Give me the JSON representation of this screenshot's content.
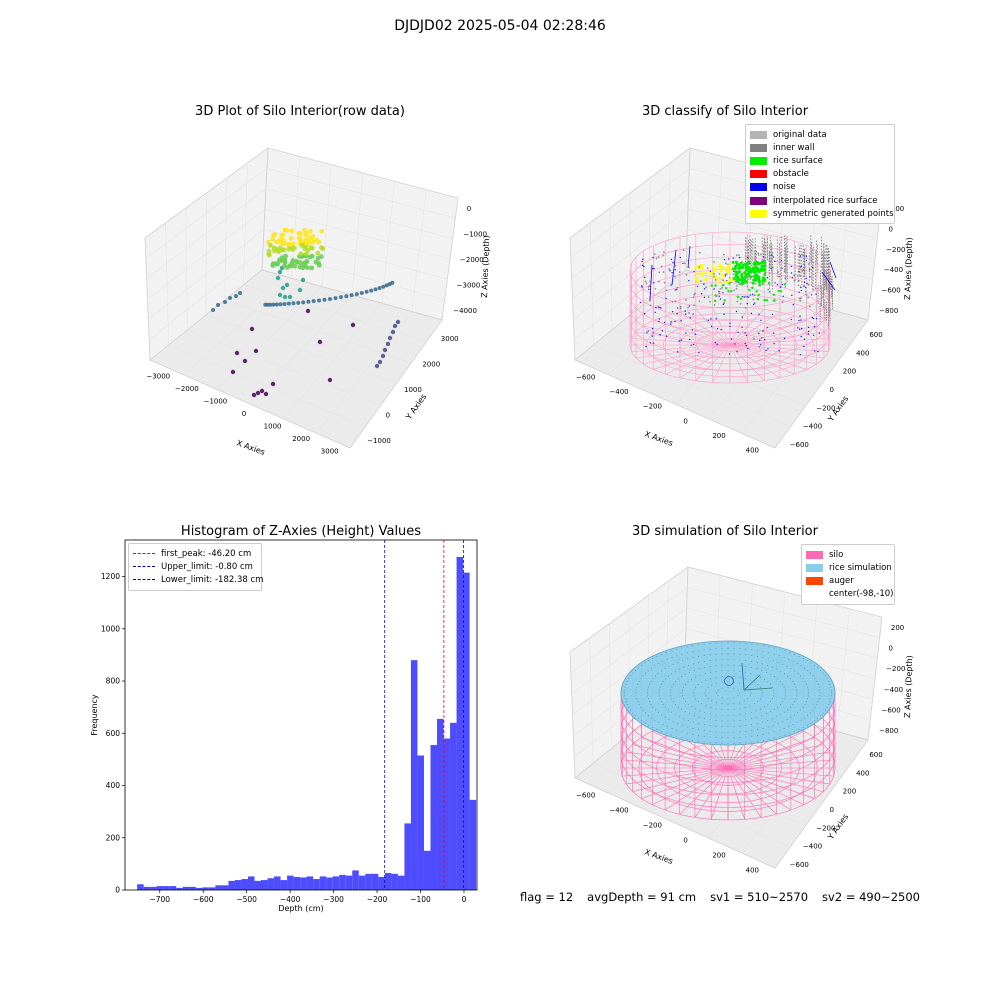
{
  "suptitle": "DJDJD02 2025-05-04 02:28:46",
  "chart_data": [
    {
      "type": "scatter",
      "title": "3D Plot of Silo Interior(row data)",
      "xlabel": "X Axies",
      "ylabel": "Y Axies",
      "zlabel": "Z Axies (Depth)",
      "x_ticks": [
        "-3000",
        "-2000",
        "-1000",
        "0",
        "1000",
        "2000",
        "3000"
      ],
      "y_ticks": [
        "-1000",
        "0",
        "1000",
        "2000",
        "3000"
      ],
      "z_ticks": [
        "0",
        "-1000",
        "-2000",
        "-3000",
        "-4000"
      ],
      "colormap": "viridis"
    },
    {
      "type": "scatter",
      "title": "3D classify of Silo Interior",
      "xlabel": "X Axies",
      "ylabel": "Y Axies",
      "zlabel": "Z Axies (Depth)",
      "x_ticks": [
        "-600",
        "-400",
        "-200",
        "0",
        "200",
        "400"
      ],
      "y_ticks": [
        "-600",
        "-400",
        "-200",
        "0",
        "200",
        "400",
        "600"
      ],
      "z_ticks": [
        "200",
        "0",
        "-200",
        "-400",
        "-600",
        "-800"
      ],
      "legend": [
        {
          "label": "original data",
          "color": "#b4b4b4"
        },
        {
          "label": "inner wall",
          "color": "#808080"
        },
        {
          "label": "rice surface",
          "color": "#00ee00"
        },
        {
          "label": "obstacle",
          "color": "#ff0000"
        },
        {
          "label": "noise",
          "color": "#0000ee"
        },
        {
          "label": "interpolated rice surface",
          "color": "#800080"
        },
        {
          "label": "symmetric generated points",
          "color": "#ffff00"
        }
      ]
    },
    {
      "type": "bar",
      "title": "Histogram of Z-Axies (Height) Values",
      "xlabel": "Depth (cm)",
      "ylabel": "Frequency",
      "xlim": [
        -780,
        30
      ],
      "ylim": [
        0,
        1340
      ],
      "x_ticks": [
        -700,
        -600,
        -500,
        -400,
        -300,
        -200,
        -100,
        0
      ],
      "y_ticks": [
        0,
        200,
        400,
        600,
        800,
        1000,
        1200
      ],
      "bin_start": -752,
      "bin_width": 15,
      "bar_color": "#4d4dff",
      "values": [
        22,
        12,
        12,
        15,
        15,
        15,
        8,
        12,
        12,
        8,
        10,
        10,
        18,
        18,
        35,
        38,
        42,
        52,
        35,
        38,
        45,
        52,
        38,
        55,
        50,
        48,
        52,
        42,
        52,
        48,
        52,
        58,
        55,
        75,
        55,
        62,
        62,
        50,
        65,
        62,
        55,
        255,
        880,
        515,
        150,
        555,
        655,
        580,
        640,
        1275,
        1215,
        345
      ],
      "vlines": [
        {
          "label": "first_peak: -46.20 cm",
          "value": -46.2,
          "color": "#ff0000"
        },
        {
          "label": "Upper_limit: -0.80 cm",
          "value": -0.8,
          "color": "#0000cc"
        },
        {
          "label": "Lower_limit: -182.38 cm",
          "value": -182.38,
          "color": "#0000cc"
        }
      ]
    },
    {
      "type": "area",
      "title": "3D simulation of Silo Interior",
      "xlabel": "X Axies",
      "ylabel": "Y Axies",
      "zlabel": "Z Axies (Depth)",
      "x_ticks": [
        "-600",
        "-400",
        "-200",
        "0",
        "200",
        "400"
      ],
      "y_ticks": [
        "-600",
        "-400",
        "-200",
        "0",
        "200",
        "400",
        "600"
      ],
      "z_ticks": [
        "200",
        "0",
        "-200",
        "-400",
        "-600",
        "-800"
      ],
      "legend": [
        {
          "label": "silo",
          "color": "#ff69b4"
        },
        {
          "label": "rice simulation",
          "color": "#87ceeb"
        },
        {
          "label": "auger",
          "color": "#ff4500"
        },
        {
          "label": "center(-98,-10)",
          "color": "#ffffff"
        }
      ]
    }
  ],
  "footer": {
    "flag": "flag = 12",
    "avg_depth": "avgDepth = 91 cm",
    "sv1": "sv1 = 510~2570",
    "sv2": "sv2 = 490~2500"
  }
}
